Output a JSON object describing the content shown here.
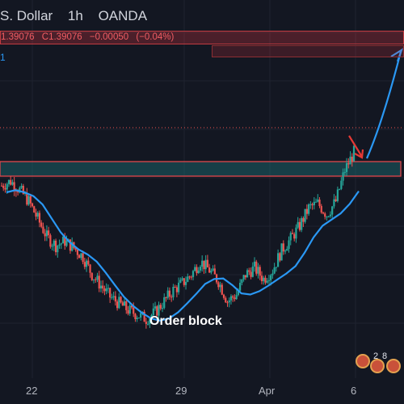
{
  "header": {
    "title_fragment": "S. Dollar",
    "interval": "1h",
    "broker": "OANDA"
  },
  "ohlc": {
    "low": "1.39076",
    "close": "C1.39076",
    "change": "−0.00050",
    "change_pct": "(−0.04%)"
  },
  "indicator_value": "1",
  "annotation": "Order block",
  "badge_numbers": [
    "2",
    "8"
  ],
  "colors": {
    "background": "#131722",
    "bull": "#26a69a",
    "bear": "#ef5350",
    "ma_line": "#2a98f4",
    "zone_border": "#e0464c",
    "zone_fill": "#1d6f75",
    "arrow_red": "#e53935"
  },
  "chart_data": {
    "type": "candlestick",
    "title": "",
    "xlabel": "",
    "ylabel": "",
    "x_ticks": [
      "22",
      "29",
      "Apr",
      "6"
    ],
    "grid": true,
    "close_approx_series": [
      0.71,
      0.73,
      0.69,
      0.64,
      0.56,
      0.48,
      0.44,
      0.46,
      0.43,
      0.39,
      0.31,
      0.26,
      0.21,
      0.18,
      0.15,
      0.13,
      0.11,
      0.14,
      0.19,
      0.24,
      0.27,
      0.31,
      0.37,
      0.33,
      0.28,
      0.19,
      0.22,
      0.31,
      0.34,
      0.29,
      0.33,
      0.42,
      0.47,
      0.53,
      0.61,
      0.63,
      0.58,
      0.64,
      0.78,
      0.86
    ],
    "price_levels": {
      "current": "1.39076"
    },
    "zones": [
      {
        "name": "order block zone",
        "kind": "support"
      }
    ],
    "series": [
      {
        "kind": "moving-average"
      }
    ],
    "projection": "down then up"
  }
}
